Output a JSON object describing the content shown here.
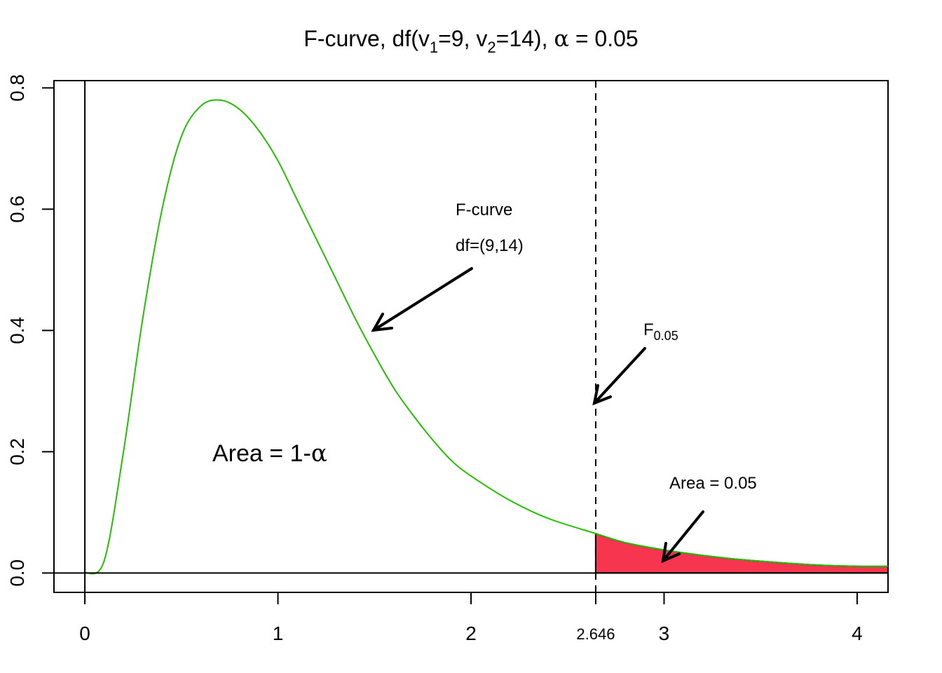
{
  "title": {
    "prefix": "F-curve, df(v",
    "sub1": "1",
    "mid": "=9, v",
    "sub2": "2",
    "suffix": "=14), ",
    "alpha": "α",
    "eq": " = 0.05"
  },
  "annotations": {
    "fcurve_line1": "F-curve",
    "fcurve_line2": "df=(9,14)",
    "fcrit_main": "F",
    "fcrit_sub": "0.05",
    "area_left_text": "Area = 1-",
    "area_left_alpha": "α",
    "area_right": "Area = 0.05"
  },
  "colors": {
    "curve": "#22c000",
    "shade": "#f7354f",
    "axis": "#000000"
  },
  "chart_data": {
    "type": "area",
    "title": "F-curve, df(v1=9, v2=14), α = 0.05",
    "df1": 9,
    "df2": 14,
    "alpha": 0.05,
    "critical_value": 2.646,
    "xlim": [
      -0.16,
      4.16
    ],
    "ylim": [
      -0.032,
      0.812
    ],
    "x_ticks": [
      0,
      1,
      2,
      2.646,
      3,
      4
    ],
    "x_tick_labels": [
      "0",
      "1",
      "2",
      "2.646",
      "3",
      "4"
    ],
    "y_ticks": [
      0,
      0.2,
      0.4,
      0.6,
      0.8
    ],
    "y_tick_labels": [
      "0.0",
      "0.2",
      "0.4",
      "0.6",
      "0.8"
    ],
    "curve": {
      "x": [
        0,
        0.1,
        0.2,
        0.3,
        0.4,
        0.5,
        0.6,
        0.7,
        0.8,
        0.9,
        1.0,
        1.1,
        1.2,
        1.3,
        1.4,
        1.5,
        1.6,
        1.7,
        1.8,
        1.9,
        2.0,
        2.2,
        2.4,
        2.646,
        2.8,
        3.0,
        3.2,
        3.4,
        3.6,
        3.8,
        4.0,
        4.16
      ],
      "y": [
        0,
        0.02,
        0.2,
        0.42,
        0.6,
        0.72,
        0.77,
        0.78,
        0.765,
        0.73,
        0.68,
        0.615,
        0.55,
        0.485,
        0.42,
        0.36,
        0.305,
        0.26,
        0.22,
        0.185,
        0.16,
        0.12,
        0.09,
        0.065,
        0.05,
        0.038,
        0.029,
        0.022,
        0.017,
        0.013,
        0.011,
        0.011
      ]
    },
    "shaded_region": {
      "from": 2.646,
      "to": 4.16,
      "area": 0.05
    }
  }
}
